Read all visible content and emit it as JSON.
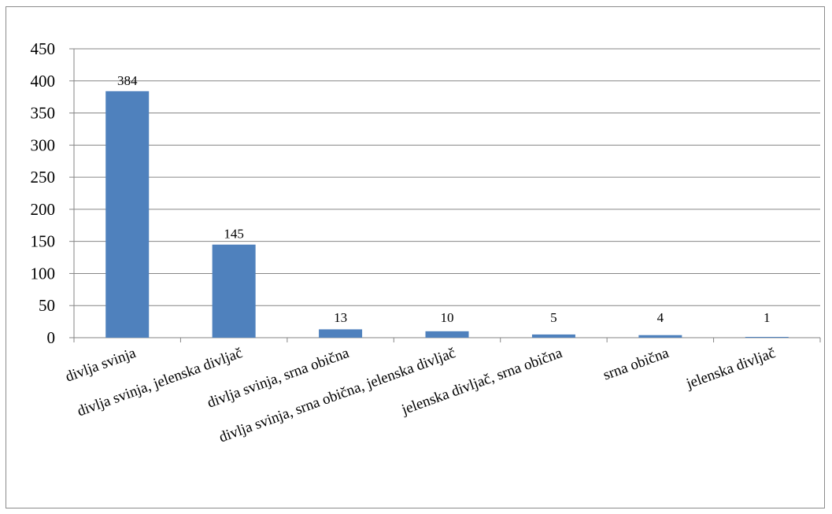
{
  "chart_data": {
    "type": "bar",
    "title": "",
    "xlabel": "",
    "ylabel": "",
    "categories": [
      "divlja svinja",
      "divlja svinja, jelenska divljač",
      "divlja svinja, srna obična",
      "divlja svinja, srna obična, jelenska divljač",
      "jelenska divljač, srna obična",
      "srna obična",
      "jelenska divljač"
    ],
    "values": [
      384,
      145,
      13,
      10,
      5,
      4,
      1
    ],
    "data_labels": [
      "384",
      "145",
      "13",
      "10",
      "5",
      "4",
      "1"
    ],
    "ylim": [
      0,
      450
    ],
    "yticks": [
      0,
      50,
      100,
      150,
      200,
      250,
      300,
      350,
      400,
      450
    ],
    "grid": true,
    "legend": "none",
    "bar_color": "#4f81bd",
    "grid_color": "#868686"
  }
}
